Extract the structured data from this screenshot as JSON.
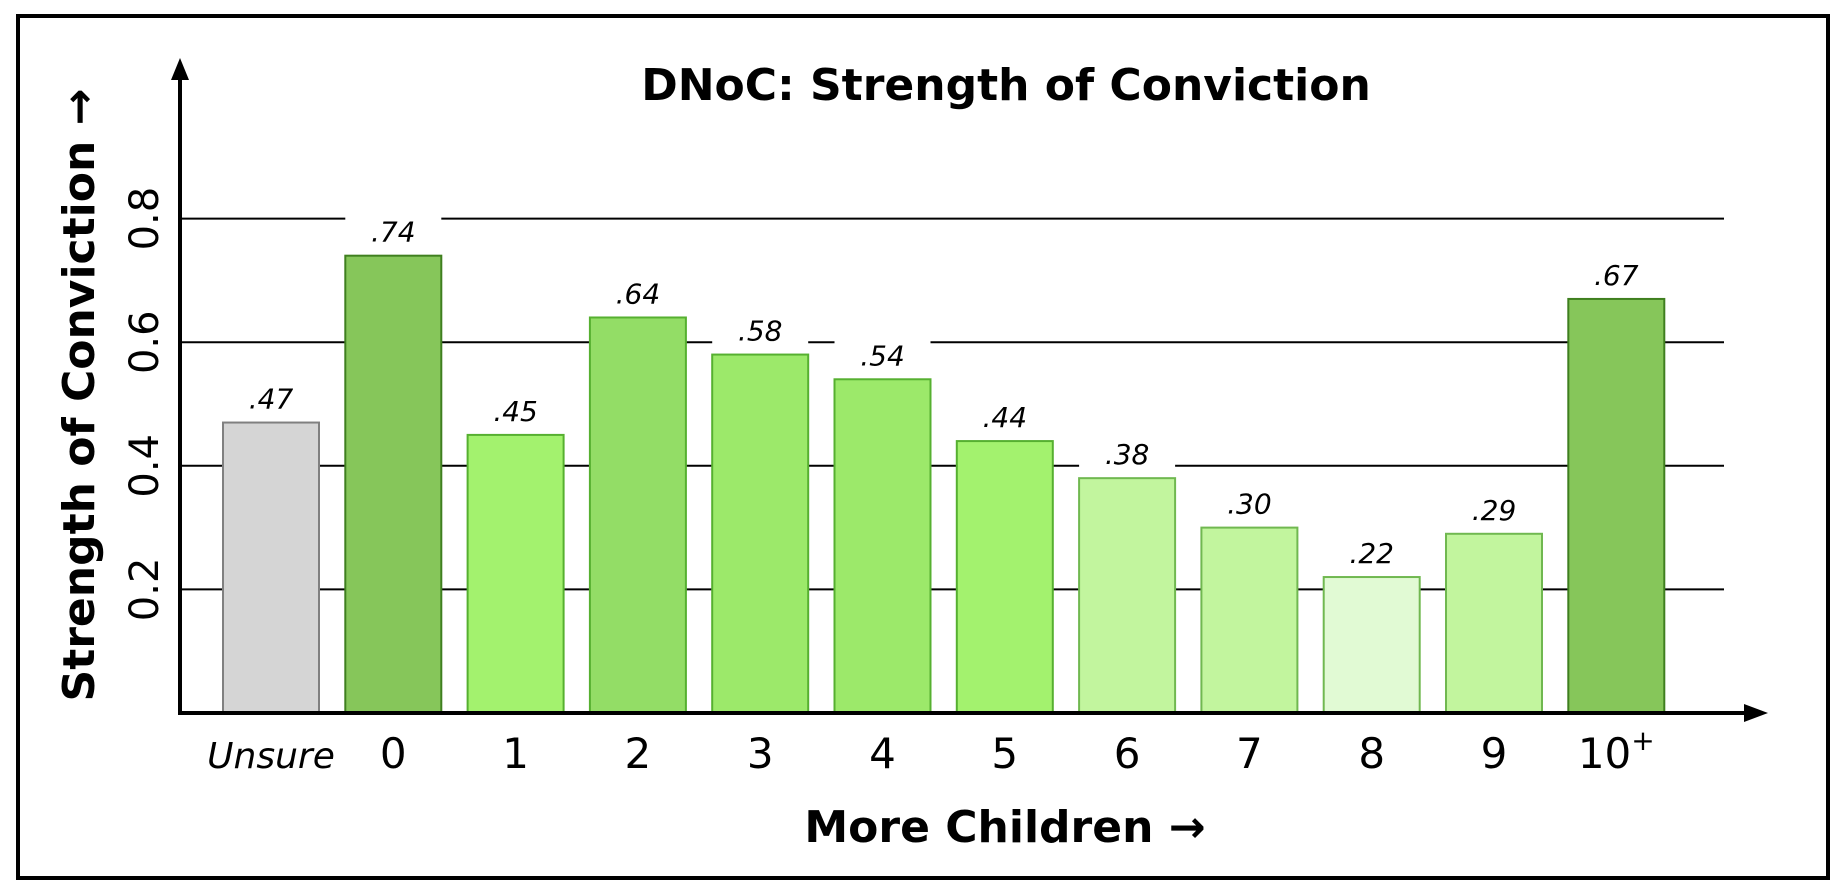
{
  "chart_data": {
    "type": "bar",
    "title": "DNoC: Strength of Conviction",
    "xlabel": "More Children →",
    "ylabel": "Strength of Conviction →",
    "categories": [
      "Unsure",
      "0",
      "1",
      "2",
      "3",
      "4",
      "5",
      "6",
      "7",
      "8",
      "9",
      "10"
    ],
    "last_category_superscript": "+",
    "values": [
      0.47,
      0.74,
      0.45,
      0.64,
      0.58,
      0.54,
      0.44,
      0.38,
      0.3,
      0.22,
      0.29,
      0.67
    ],
    "value_labels": [
      ".47",
      ".74",
      ".45",
      ".64",
      ".58",
      ".54",
      ".44",
      ".38",
      ".30",
      ".22",
      ".29",
      ".67"
    ],
    "bar_colors": [
      "#d5d5d5",
      "#86c65a",
      "#a3f26e",
      "#93dd66",
      "#9ce96a",
      "#9ce96a",
      "#a3f26e",
      "#c2f59e",
      "#c2f59e",
      "#e1fad4",
      "#c2f59e",
      "#86c65a"
    ],
    "bar_stroke_colors": [
      "#808080",
      "#3f7f1f",
      "#56b030",
      "#56b030",
      "#56b030",
      "#56b030",
      "#56b030",
      "#70b850",
      "#70b850",
      "#70b850",
      "#70b850",
      "#3f7f1f"
    ],
    "yticks": [
      0.2,
      0.4,
      0.6,
      0.8
    ],
    "ytick_labels": [
      "0.2",
      "0.4",
      "0.6",
      "0.8"
    ],
    "ylim": [
      0,
      0.9
    ],
    "grid": true,
    "legend": "none"
  }
}
